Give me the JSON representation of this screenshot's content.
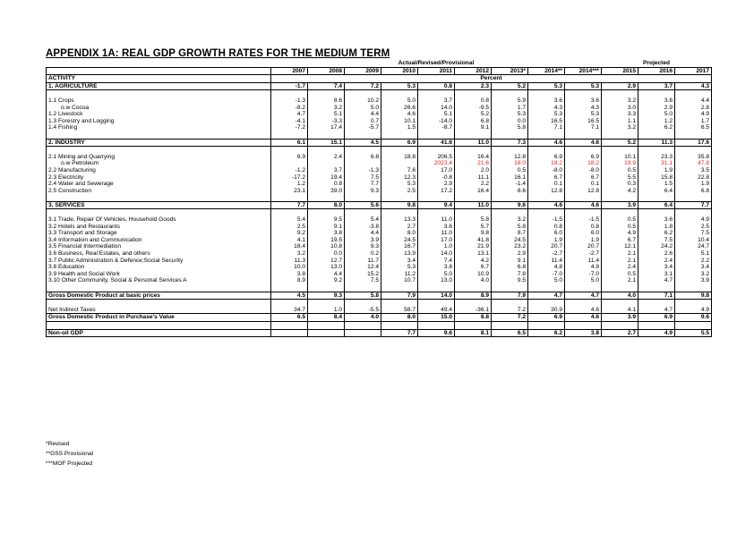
{
  "title": "APPENDIX 1A:  REAL GDP GROWTH RATES FOR THE MEDIUM TERM",
  "group_left": "Actual/Revised/Provisional",
  "group_right": "Projected",
  "unit": "Percent",
  "activity_header": "ACTIVITY",
  "years": [
    "2007",
    "2008",
    "2009",
    "2010",
    "2011",
    "2012",
    "2013*",
    "2014**",
    "2014***",
    "2015",
    "2016",
    "2017"
  ],
  "rows": [
    {
      "label": "1. AGRICULTURE",
      "bold": true,
      "values": [
        "-1.7",
        "7.4",
        "7.2",
        "5.3",
        "0.8",
        "2.3",
        "5.2",
        "5.3",
        "5.3",
        "2.9",
        "3.7",
        "4.3"
      ]
    },
    {
      "sep": true
    },
    {
      "label": "1.1 Crops",
      "values": [
        "-1.3",
        "8.6",
        "10.2",
        "5.0",
        "3.7",
        "0.8",
        "5.9",
        "3.6",
        "3.6",
        "3.2",
        "3.6",
        "4.4"
      ]
    },
    {
      "label": "o.w Cocoa",
      "indent": true,
      "values": [
        "-8.2",
        "3.2",
        "5.0",
        "26.6",
        "14.0",
        "-9.5",
        "1.7",
        "4.3",
        "4.3",
        "3.0",
        "2.9",
        "2.8"
      ]
    },
    {
      "label": "1.2 Livestock",
      "values": [
        "4.7",
        "5.1",
        "4.4",
        "4.6",
        "5.1",
        "5.2",
        "5.3",
        "5.3",
        "5.3",
        "3.3",
        "5.0",
        "4.9"
      ]
    },
    {
      "label": "1.3 Forestry and Logging",
      "values": [
        "-4.1",
        "-3.3",
        "0.7",
        "10.1",
        "-14.0",
        "6.8",
        "0.0",
        "16.5",
        "16.5",
        "1.1",
        "1.2",
        "1.7"
      ]
    },
    {
      "label": "1.4 Fishing",
      "values": [
        "-7.2",
        "17.4",
        "-5.7",
        "1.5",
        "-8.7",
        "9.1",
        "5.8",
        "7.1",
        "7.1",
        "3.2",
        "6.2",
        "6.5"
      ]
    },
    {
      "sep": true
    },
    {
      "label": "2. INDUSTRY",
      "bold": true,
      "values": [
        "6.1",
        "15.1",
        "4.5",
        "6.9",
        "41.6",
        "11.0",
        "7.3",
        "4.6",
        "4.6",
        "5.2",
        "11.3",
        "17.6"
      ]
    },
    {
      "sep": true
    },
    {
      "label": "2.1 Mining and Quarrying",
      "values": [
        "6.9",
        "2.4",
        "6.8",
        "18.8",
        "206.5",
        "16.4",
        "12.8",
        "6.9",
        "6.9",
        "10.1",
        "23.3",
        "35.8"
      ]
    },
    {
      "label": "o.w Petroleum",
      "indent": true,
      "red": true,
      "values": [
        "",
        "",
        "",
        "",
        "2023.4",
        "21.6",
        "18.0",
        "18.2",
        "18.2",
        "19.9",
        "31.1",
        "47.8"
      ]
    },
    {
      "label": "2.2 Manufacturing",
      "values": [
        "-1.2",
        "3.7",
        "-1.3",
        "7.6",
        "17.0",
        "2.0",
        "0.5",
        "-8.0",
        "-8.0",
        "0.5",
        "1.9",
        "3.5"
      ]
    },
    {
      "label": "2.3 Electricity",
      "values": [
        "-17.2",
        "19.4",
        "7.5",
        "12.3",
        "-0.8",
        "11.1",
        "16.1",
        "6.7",
        "6.7",
        "5.5",
        "15.8",
        "22.8"
      ]
    },
    {
      "label": "2.4 Water and Sewerage",
      "values": [
        "1.2",
        "0.8",
        "7.7",
        "5.3",
        "2.9",
        "2.2",
        "-1.4",
        "0.1",
        "0.1",
        "0.3",
        "1.5",
        "1.9"
      ]
    },
    {
      "label": "2.5 Construction",
      "values": [
        "23.1",
        "39.0",
        "9.3",
        "2.5",
        "17.2",
        "16.4",
        "8.6",
        "12.8",
        "12.8",
        "4.2",
        "6.4",
        "6.8"
      ]
    },
    {
      "sep": true
    },
    {
      "label": "3. SERVICES",
      "bold": true,
      "values": [
        "7.7",
        "8.0",
        "5.6",
        "9.8",
        "9.4",
        "11.0",
        "9.6",
        "4.6",
        "4.6",
        "3.9",
        "6.4",
        "7.7"
      ]
    },
    {
      "sep": true
    },
    {
      "label": "3.1 Trade, Repair Of Vehicles, Household Goods",
      "values": [
        "5.4",
        "9.5",
        "5.4",
        "13.3",
        "11.0",
        "5.8",
        "3.2",
        "-1.5",
        "-1.5",
        "0.5",
        "3.6",
        "4.9"
      ]
    },
    {
      "label": "3.2 Hotels and Restaurants",
      "values": [
        "2.5",
        "9.1",
        "-3.8",
        "2.7",
        "3.6",
        "5.7",
        "5.8",
        "0.8",
        "0.8",
        "0.5",
        "1.8",
        "2.5"
      ]
    },
    {
      "label": "3.3 Transport and Storage",
      "values": [
        "9.2",
        "3.8",
        "4.4",
        "8.0",
        "11.0",
        "9.8",
        "8.7",
        "6.0",
        "6.0",
        "4.9",
        "6.2",
        "7.5"
      ]
    },
    {
      "label": "3.4 Information and Communication",
      "values": [
        "4.1",
        "19.5",
        "3.9",
        "24.5",
        "17.0",
        "41.8",
        "24.5",
        "1.9",
        "1.9",
        "6.7",
        "7.5",
        "10.4"
      ]
    },
    {
      "label": "3.5 Financial Intermediation",
      "values": [
        "18.4",
        "10.8",
        "9.3",
        "16.7",
        "1.0",
        "21.9",
        "23.2",
        "20.7",
        "20.7",
        "12.1",
        "24.2",
        "24.7"
      ]
    },
    {
      "label": "3.6 Business, Real Estates, and others",
      "values": [
        "3.2",
        "0.0",
        "0.2",
        "13.9",
        "14.0",
        "13.1",
        "2.9",
        "-2.7",
        "-2.7",
        "2.1",
        "2.6",
        "5.1"
      ]
    },
    {
      "label": "3.7 Public Administration & Defence;Social Security",
      "values": [
        "11.3",
        "12.7",
        "11.7",
        "3.4",
        "7.4",
        "4.2",
        "9.1",
        "11.4",
        "11.4",
        "2.1",
        "2.4",
        "2.2"
      ]
    },
    {
      "label": "3.8 Education",
      "values": [
        "10.0",
        "13.0",
        "12.4",
        "5.3",
        "3.8",
        "6.7",
        "6.8",
        "4.8",
        "4.8",
        "2.4",
        "3.4",
        "3.4"
      ]
    },
    {
      "label": "3.9 Health and Social Work",
      "values": [
        "3.8",
        "4.4",
        "15.2",
        "11.2",
        "5.0",
        "10.9",
        "7.8",
        "-7.0",
        "-7.0",
        "0.5",
        "3.1",
        "3.2"
      ]
    },
    {
      "label": "3.10 Other Community, Social & Personal Services A",
      "values": [
        "8.9",
        "9.2",
        "7.5",
        "10.7",
        "13.0",
        "4.0",
        "9.5",
        "5.0",
        "5.0",
        "2.1",
        "4.7",
        "3.9"
      ]
    },
    {
      "sep": true
    },
    {
      "label": "Gross Domestic Product at basic prices",
      "bold": true,
      "boxed": true,
      "values": [
        "4.5",
        "9.3",
        "5.8",
        "7.9",
        "14.0",
        "8.9",
        "7.9",
        "4.7",
        "4.7",
        "4.0",
        "7.1",
        "9.8"
      ]
    },
    {
      "sep": true
    },
    {
      "label": "Net Indirect Taxes",
      "values": [
        "34.7",
        "1.0",
        "-5.5",
        "58.7",
        "49.4",
        "-36.1",
        "7.2",
        "30.9",
        "4.6",
        "4.1",
        "4.7",
        "4.9"
      ]
    },
    {
      "label": "Gross Domestic Product in Purchase's Value",
      "bold": true,
      "values": [
        "6.5",
        "8.4",
        "4.0",
        "8.0",
        "15.0",
        "8.8",
        "7.2",
        "6.9",
        "4.6",
        "3.9",
        "6.9",
        "9.6"
      ]
    },
    {
      "sep": true
    },
    {
      "label": "Non-oil GDP",
      "bold": true,
      "boxed": true,
      "values": [
        "",
        "",
        "",
        "7.7",
        "9.6",
        "8.1",
        "6.5",
        "6.2",
        "3.8",
        "2.7",
        "4.9",
        "5.5"
      ]
    }
  ],
  "notes": [
    "*Revised",
    "**GSS Provisional",
    "***MOF Projected"
  ]
}
